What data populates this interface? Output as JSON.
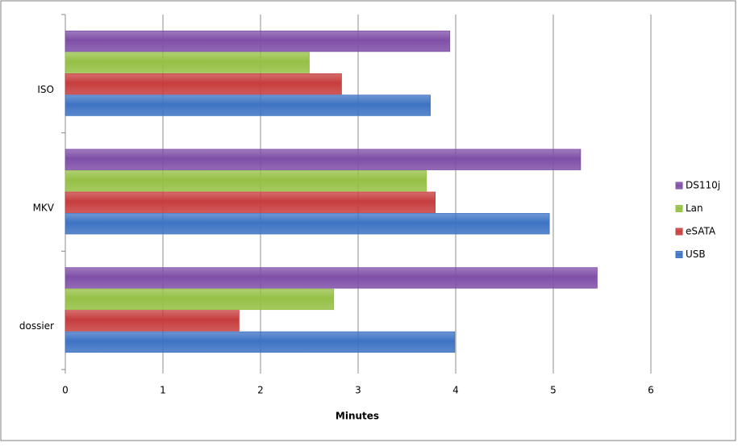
{
  "chart_data": {
    "type": "hbar",
    "x_label": "Minutes",
    "categories": [
      "dossier",
      "MKV",
      "ISO"
    ],
    "series": [
      {
        "name": "USB",
        "color": "#3e73c3",
        "values": [
          3.99,
          4.96,
          3.74
        ]
      },
      {
        "name": "eSATA",
        "color": "#c73d3d",
        "values": [
          1.78,
          3.79,
          2.83
        ]
      },
      {
        "name": "Lan",
        "color": "#95c045",
        "values": [
          2.75,
          3.7,
          2.5
        ]
      },
      {
        "name": "DS110j",
        "color": "#7f4fa8",
        "values": [
          5.45,
          5.28,
          3.94
        ]
      }
    ],
    "xlim": [
      0,
      6
    ],
    "xticks": [
      0,
      1,
      2,
      3,
      4,
      5,
      6
    ],
    "grid": true,
    "legend": "right"
  }
}
